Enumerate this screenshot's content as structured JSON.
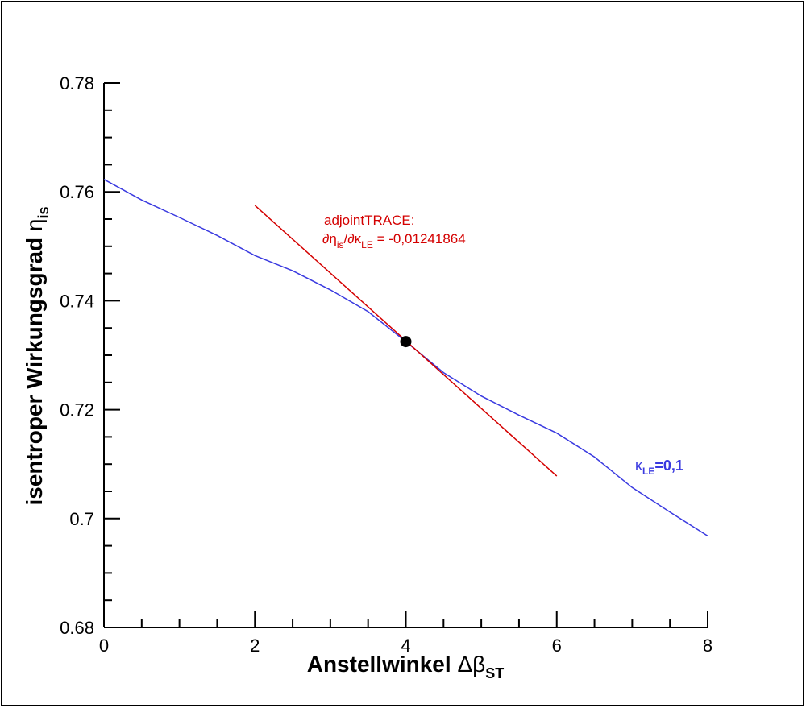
{
  "chart_data": {
    "type": "line",
    "xlabel_main": "Anstellwinkel ",
    "xlabel_symbol": "Δβ",
    "xlabel_sub": "ST",
    "ylabel_main": "isentroper Wirkungsgrad ",
    "ylabel_symbol": "η",
    "ylabel_sub": "is",
    "xlim": [
      0,
      8
    ],
    "ylim": [
      0.68,
      0.78
    ],
    "x_ticks": [
      0,
      2,
      4,
      6,
      8
    ],
    "x_tick_labels": [
      "0",
      "2",
      "4",
      "6",
      "8"
    ],
    "x_minor_step": 0.5,
    "y_ticks": [
      0.68,
      0.7,
      0.72,
      0.74,
      0.76,
      0.78
    ],
    "y_tick_labels": [
      "0.68",
      "0.7",
      "0.72",
      "0.74",
      "0.76",
      "0.78"
    ],
    "y_minor_step": 0.005,
    "grid": false,
    "series": [
      {
        "color": "#3a3ae0",
        "x": [
          0,
          0.5,
          1.0,
          1.5,
          2.0,
          2.5,
          3.0,
          3.5,
          4.0,
          4.5,
          5.0,
          5.5,
          6.0,
          6.5,
          7.0,
          7.5,
          8.0
        ],
        "y": [
          0.7623,
          0.7585,
          0.7553,
          0.752,
          0.7483,
          0.7455,
          0.742,
          0.738,
          0.7325,
          0.7268,
          0.7225,
          0.719,
          0.7157,
          0.7113,
          0.7057,
          0.7012,
          0.6968
        ]
      },
      {
        "color": "#d40000",
        "x": [
          2.0,
          6.0
        ],
        "y": [
          0.7575,
          0.7078
        ]
      }
    ],
    "point": {
      "x": 4.0,
      "y": 0.7325,
      "color": "#000000"
    },
    "annotations": {
      "tangent_line1": "adjointTRACE:",
      "tangent_line2_parts": [
        "∂η",
        "is",
        "/∂κ",
        "LE",
        " = -0,01241864"
      ],
      "series_label_parts": [
        "κ",
        "LE",
        "=0,1"
      ]
    }
  }
}
